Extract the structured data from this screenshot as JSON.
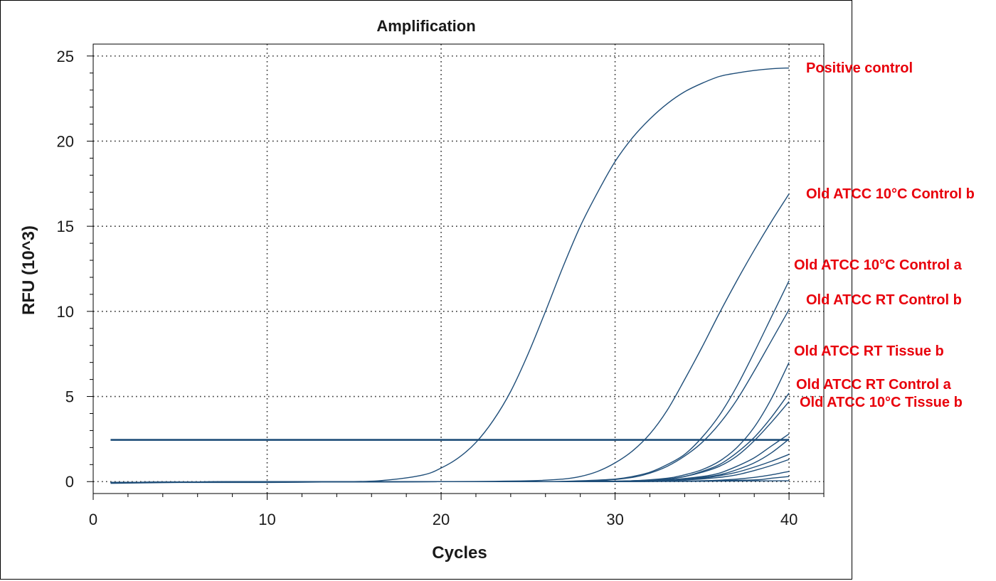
{
  "chart_data": {
    "type": "line",
    "title": "Amplification",
    "xlabel": "Cycles",
    "ylabel": "RFU (10^3)",
    "xlim": [
      0,
      42
    ],
    "ylim": [
      -0.7,
      25.7
    ],
    "xticks": [
      0,
      10,
      20,
      30,
      40
    ],
    "yticks": [
      0,
      5,
      10,
      15,
      20,
      25
    ],
    "grid": true,
    "grid_style": "dotted",
    "line_color": "#1f4e79",
    "annotation_color": "#e8000b",
    "threshold": {
      "value": 2.45,
      "x_range": [
        1,
        40
      ]
    },
    "series": [
      {
        "name": "Positive control",
        "x": [
          1,
          5,
          10,
          15,
          17,
          19,
          20,
          21,
          22,
          23,
          24,
          25,
          26,
          27,
          28,
          29,
          30,
          31,
          32,
          33,
          34,
          35,
          36,
          37,
          38,
          39,
          40
        ],
        "y": [
          -0.1,
          -0.05,
          -0.05,
          0.0,
          0.1,
          0.4,
          0.8,
          1.4,
          2.3,
          3.6,
          5.3,
          7.5,
          10.0,
          12.6,
          15.0,
          17.0,
          18.8,
          20.2,
          21.3,
          22.2,
          22.9,
          23.4,
          23.8,
          24.0,
          24.15,
          24.25,
          24.3
        ]
      },
      {
        "name": "Old ATCC 10°C Control b",
        "x": [
          1,
          10,
          20,
          25,
          27,
          28,
          29,
          30,
          31,
          32,
          33,
          34,
          35,
          36,
          37,
          38,
          39,
          40
        ],
        "y": [
          -0.05,
          0.0,
          0.0,
          0.05,
          0.15,
          0.3,
          0.6,
          1.1,
          1.8,
          2.8,
          4.2,
          6.0,
          7.9,
          9.9,
          11.8,
          13.6,
          15.3,
          16.9
        ]
      },
      {
        "name": "Old ATCC 10°C Control a",
        "x": [
          1,
          10,
          20,
          26,
          28,
          30,
          31,
          32,
          33,
          34,
          35,
          36,
          37,
          38,
          39,
          40
        ],
        "y": [
          -0.05,
          0.0,
          0.0,
          0.0,
          0.05,
          0.15,
          0.3,
          0.55,
          1.0,
          1.6,
          2.6,
          3.9,
          5.6,
          7.6,
          9.7,
          11.8
        ]
      },
      {
        "name": "Old ATCC RT Control b",
        "x": [
          1,
          10,
          20,
          26,
          29,
          31,
          32,
          33,
          34,
          35,
          36,
          37,
          38,
          39,
          40
        ],
        "y": [
          -0.05,
          0.0,
          0.0,
          0.0,
          0.05,
          0.25,
          0.5,
          0.9,
          1.5,
          2.3,
          3.4,
          4.8,
          6.5,
          8.3,
          10.1
        ]
      },
      {
        "name": "Old ATCC RT Tissue b",
        "x": [
          1,
          10,
          20,
          28,
          31,
          33,
          34,
          35,
          36,
          37,
          38,
          39,
          40
        ],
        "y": [
          -0.05,
          0.0,
          0.0,
          0.0,
          0.05,
          0.2,
          0.4,
          0.7,
          1.2,
          2.0,
          3.2,
          4.9,
          7.0
        ]
      },
      {
        "name": "Old ATCC RT Control a",
        "x": [
          1,
          10,
          20,
          28,
          31,
          33,
          34,
          35,
          36,
          37,
          38,
          39,
          40
        ],
        "y": [
          -0.05,
          0.0,
          0.0,
          0.0,
          0.05,
          0.15,
          0.3,
          0.6,
          1.0,
          1.7,
          2.6,
          3.8,
          5.2
        ]
      },
      {
        "name": "Old ATCC 10°C Tissue b",
        "x": [
          1,
          10,
          20,
          28,
          31,
          33,
          34,
          35,
          36,
          37,
          38,
          39,
          40
        ],
        "y": [
          -0.05,
          0.0,
          0.0,
          0.0,
          0.05,
          0.15,
          0.3,
          0.55,
          0.9,
          1.5,
          2.4,
          3.5,
          4.7
        ]
      },
      {
        "name": "",
        "x": [
          1,
          20,
          30,
          33,
          35,
          36,
          37,
          38,
          39,
          40
        ],
        "y": [
          -0.05,
          0.0,
          0.0,
          0.1,
          0.3,
          0.5,
          0.9,
          1.4,
          2.1,
          2.8
        ]
      },
      {
        "name": "",
        "x": [
          1,
          20,
          30,
          33,
          35,
          36,
          37,
          38,
          39,
          40
        ],
        "y": [
          -0.05,
          0.0,
          0.0,
          0.1,
          0.25,
          0.4,
          0.7,
          1.1,
          1.7,
          2.5
        ]
      },
      {
        "name": "",
        "x": [
          1,
          20,
          30,
          33,
          35,
          36,
          37,
          38,
          39,
          40
        ],
        "y": [
          -0.05,
          0.0,
          0.0,
          0.05,
          0.2,
          0.35,
          0.55,
          0.85,
          1.2,
          1.6
        ]
      },
      {
        "name": "",
        "x": [
          1,
          20,
          30,
          34,
          36,
          37,
          38,
          39,
          40
        ],
        "y": [
          -0.05,
          0.0,
          0.0,
          0.1,
          0.25,
          0.4,
          0.65,
          0.95,
          1.3
        ]
      },
      {
        "name": "",
        "x": [
          1,
          20,
          30,
          35,
          37,
          38,
          39,
          40
        ],
        "y": [
          -0.05,
          0.0,
          0.0,
          0.05,
          0.15,
          0.25,
          0.4,
          0.6
        ]
      },
      {
        "name": "",
        "x": [
          1,
          20,
          30,
          35,
          38,
          39,
          40
        ],
        "y": [
          -0.05,
          0.0,
          0.0,
          0.05,
          0.1,
          0.2,
          0.3
        ]
      },
      {
        "name": "",
        "x": [
          1,
          20,
          30,
          40
        ],
        "y": [
          -0.05,
          0.0,
          0.0,
          0.05
        ]
      }
    ],
    "annotations": [
      "Positive control",
      "Old ATCC 10°C Control b",
      "Old ATCC 10°C Control a",
      "Old ATCC RT Control b",
      "Old ATCC RT Tissue b",
      "Old ATCC RT Control a",
      "Old ATCC 10°C Tissue b"
    ]
  }
}
